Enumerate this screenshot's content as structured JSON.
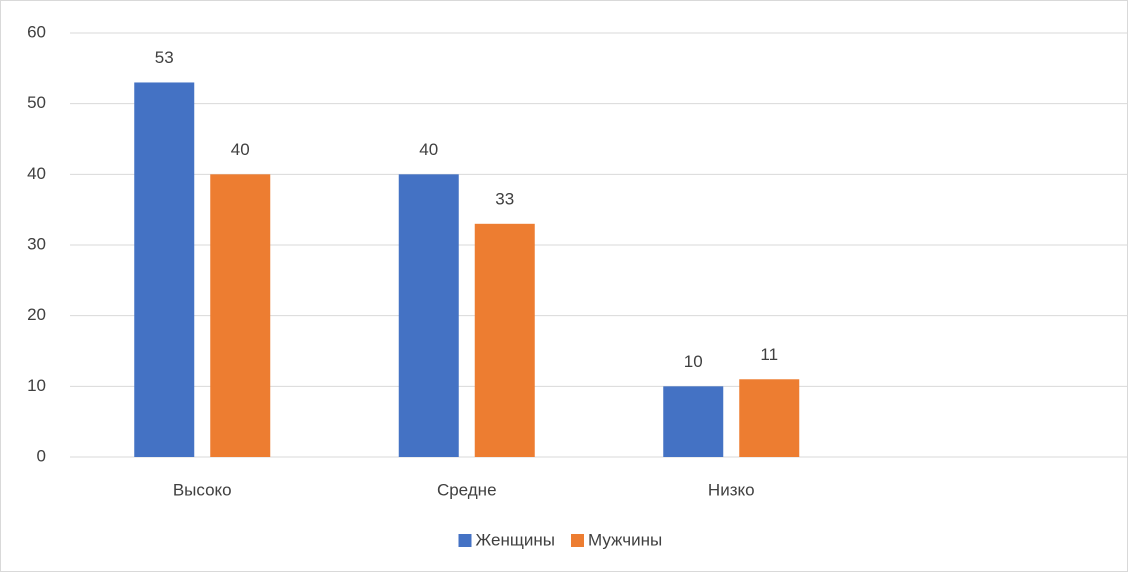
{
  "chart_data": {
    "type": "bar",
    "categories": [
      "Высоко",
      "Средне",
      "Низко",
      null
    ],
    "series": [
      {
        "name": "Женщины",
        "color": "#4472c4",
        "values": [
          53,
          40,
          10,
          null
        ]
      },
      {
        "name": "Мужчины",
        "color": "#ed7d31",
        "values": [
          40,
          33,
          11,
          null
        ]
      }
    ],
    "ylim": [
      0,
      60
    ],
    "yticks": [
      0,
      10,
      20,
      30,
      40,
      50,
      60
    ],
    "grid": true,
    "legend": "bottom"
  }
}
